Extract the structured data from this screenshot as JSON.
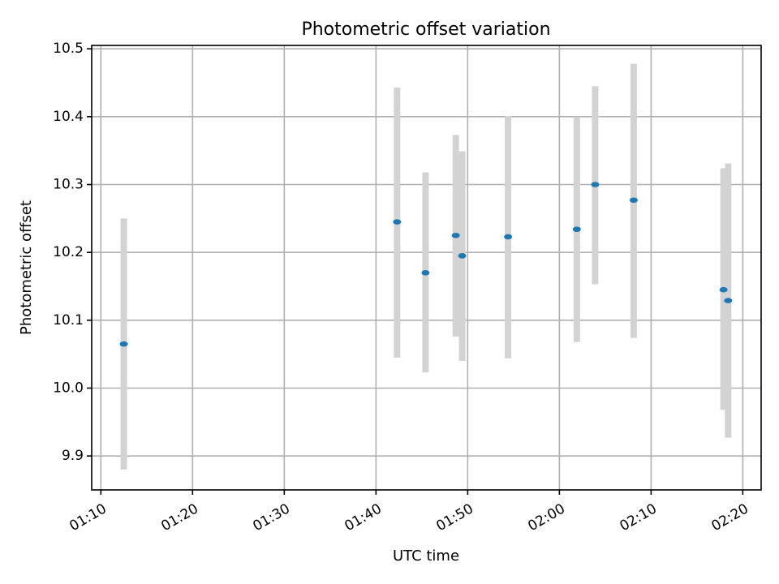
{
  "chart_data": {
    "type": "scatter",
    "title": "Photometric offset variation",
    "xlabel": "UTC time",
    "ylabel": "Photometric offset",
    "x_unit": "minutes",
    "xlim": [
      "01:09",
      "02:22"
    ],
    "ylim": [
      9.85,
      10.505
    ],
    "x_ticks": [
      "01:10",
      "01:20",
      "01:30",
      "01:40",
      "01:50",
      "02:00",
      "02:10",
      "02:20"
    ],
    "y_ticks": [
      9.9,
      10.0,
      10.1,
      10.2,
      10.3,
      10.4,
      10.5
    ],
    "y_tick_labels": [
      "9.9",
      "10.0",
      "10.1",
      "10.2",
      "10.3",
      "10.4",
      "10.5"
    ],
    "grid": true,
    "marker_color": "#1f77b4",
    "errorbar_color": "#d3d3d3",
    "points": [
      {
        "x": "01:12.5",
        "y": 10.065,
        "lo": 9.88,
        "hi": 10.25
      },
      {
        "x": "01:42.3",
        "y": 10.245,
        "lo": 10.045,
        "hi": 10.443
      },
      {
        "x": "01:45.4",
        "y": 10.17,
        "lo": 10.023,
        "hi": 10.318
      },
      {
        "x": "01:48.7",
        "y": 10.225,
        "lo": 10.076,
        "hi": 10.373
      },
      {
        "x": "01:49.4",
        "y": 10.195,
        "lo": 10.04,
        "hi": 10.349
      },
      {
        "x": "01:54.4",
        "y": 10.223,
        "lo": 10.044,
        "hi": 10.401
      },
      {
        "x": "02:01.9",
        "y": 10.234,
        "lo": 10.068,
        "hi": 10.4
      },
      {
        "x": "02:03.9",
        "y": 10.3,
        "lo": 10.153,
        "hi": 10.445
      },
      {
        "x": "02:08.1",
        "y": 10.277,
        "lo": 10.074,
        "hi": 10.478
      },
      {
        "x": "02:17.9",
        "y": 10.145,
        "lo": 9.968,
        "hi": 10.324
      },
      {
        "x": "02:18.4",
        "y": 10.129,
        "lo": 9.927,
        "hi": 10.331
      }
    ]
  }
}
